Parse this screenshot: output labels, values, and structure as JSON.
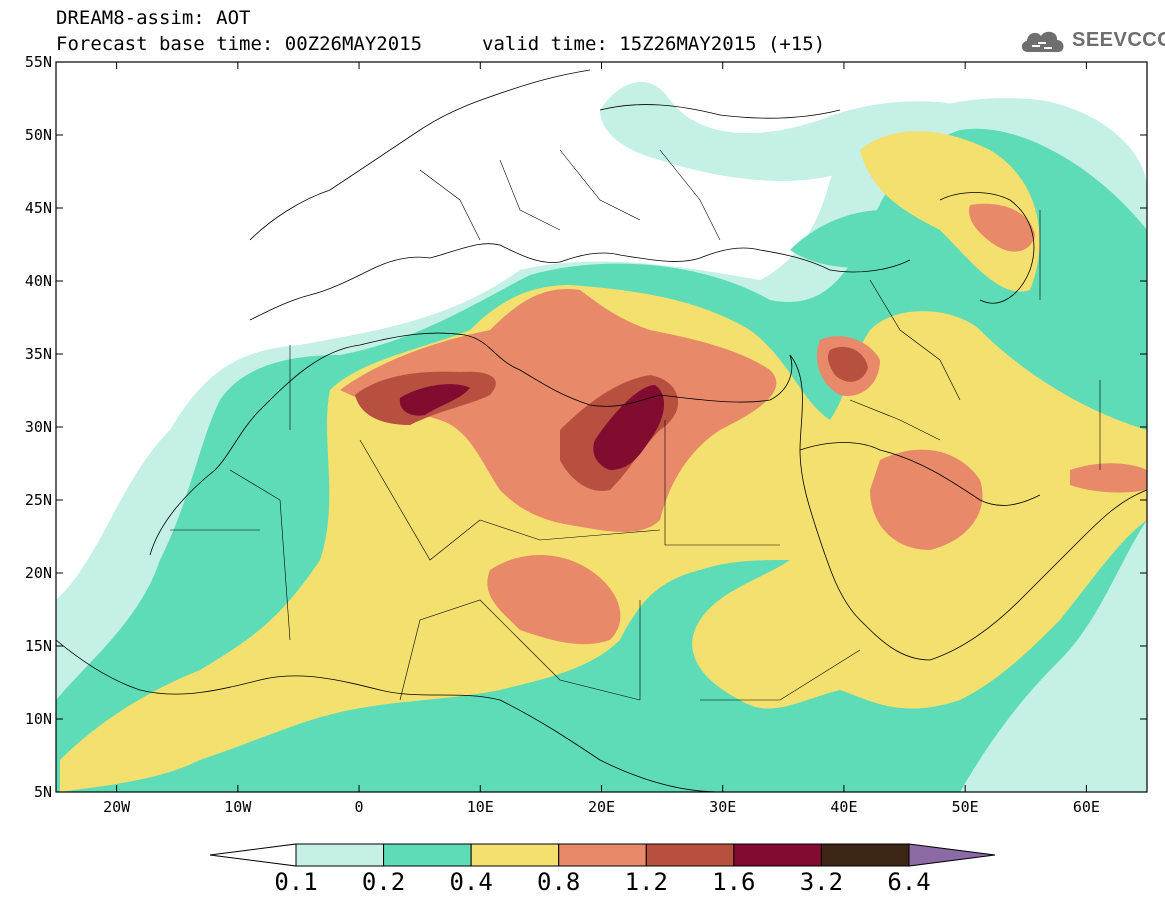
{
  "header": {
    "title": "DREAM8-assim: AOT",
    "base_time": "Forecast base time: 00Z26MAY2015",
    "valid_time": "valid time: 15Z26MAY2015 (+15)"
  },
  "logo": {
    "text": "SEEVCCC",
    "icon": "cloud-icon"
  },
  "map": {
    "lon_range": [
      -25,
      65
    ],
    "lat_range": [
      5,
      55
    ],
    "lat_ticks": [
      {
        "value": 55,
        "label": "55N"
      },
      {
        "value": 50,
        "label": "50N"
      },
      {
        "value": 45,
        "label": "45N"
      },
      {
        "value": 40,
        "label": "40N"
      },
      {
        "value": 35,
        "label": "35N"
      },
      {
        "value": 30,
        "label": "30N"
      },
      {
        "value": 25,
        "label": "25N"
      },
      {
        "value": 20,
        "label": "20N"
      },
      {
        "value": 15,
        "label": "15N"
      },
      {
        "value": 10,
        "label": "10N"
      },
      {
        "value": 5,
        "label": "5N"
      }
    ],
    "lon_ticks": [
      {
        "value": -20,
        "label": "20W"
      },
      {
        "value": -10,
        "label": "10W"
      },
      {
        "value": 0,
        "label": "0"
      },
      {
        "value": 10,
        "label": "10E"
      },
      {
        "value": 20,
        "label": "20E"
      },
      {
        "value": 30,
        "label": "30E"
      },
      {
        "value": 40,
        "label": "40E"
      },
      {
        "value": 50,
        "label": "50E"
      },
      {
        "value": 60,
        "label": "60E"
      }
    ]
  },
  "colorbar": {
    "labels": [
      "0.1",
      "0.2",
      "0.4",
      "0.8",
      "1.2",
      "1.6",
      "3.2",
      "6.4"
    ],
    "colors": [
      "#ffffff",
      "#c4f0e6",
      "#5ddcb7",
      "#f4e06e",
      "#e8896a",
      "#b8503f",
      "#820c30",
      "#3d2616",
      "#8b6aa6"
    ]
  }
}
